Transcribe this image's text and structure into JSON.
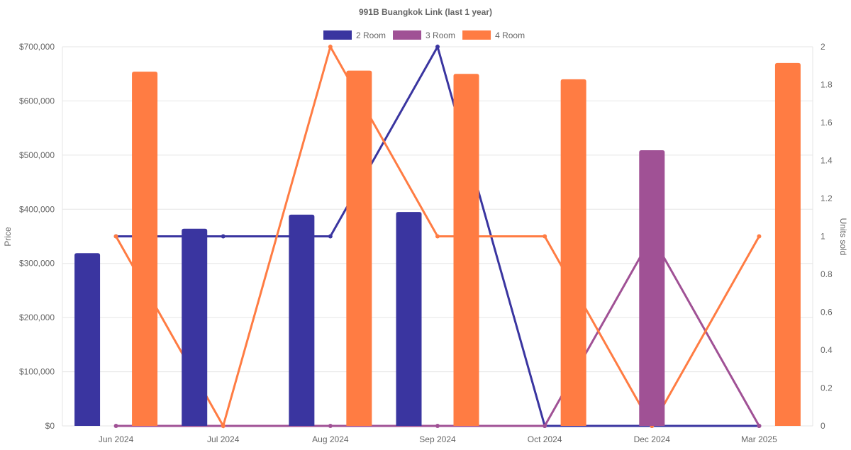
{
  "chart_data": {
    "type": "bar",
    "title": "991B Buangkok Link (last 1 year)",
    "categories": [
      "Jun 2024",
      "Jul 2024",
      "Aug 2024",
      "Sep 2024",
      "Oct 2024",
      "Dec 2024",
      "Mar 2025"
    ],
    "ylabel": "Price",
    "y2label": "Units sold",
    "ylim": [
      0,
      700000
    ],
    "y2lim": [
      0,
      2
    ],
    "yticks": [
      "$0",
      "$100,000",
      "$200,000",
      "$300,000",
      "$400,000",
      "$500,000",
      "$600,000",
      "$700,000"
    ],
    "y2ticks": [
      "0",
      "0.2",
      "0.4",
      "0.6",
      "0.8",
      "1",
      "1.2",
      "1.4",
      "1.6",
      "1.8",
      "2"
    ],
    "legend_position": "top",
    "grid": true,
    "series": [
      {
        "name": "2 Room",
        "color": "#3a35a0",
        "price": [
          319000,
          364000,
          390000,
          395000,
          null,
          null,
          null
        ],
        "units": [
          1,
          1,
          1,
          2,
          0,
          0,
          0
        ]
      },
      {
        "name": "3 Room",
        "color": "#a05195",
        "price": [
          null,
          null,
          null,
          null,
          null,
          509000,
          null
        ],
        "units": [
          0,
          0,
          0,
          0,
          0,
          1,
          0
        ]
      },
      {
        "name": "4 Room",
        "color": "#ff7c43",
        "price": [
          654000,
          null,
          656000,
          650000,
          640000,
          null,
          670000
        ],
        "units": [
          1,
          0,
          2,
          1,
          1,
          0,
          1
        ]
      }
    ]
  }
}
